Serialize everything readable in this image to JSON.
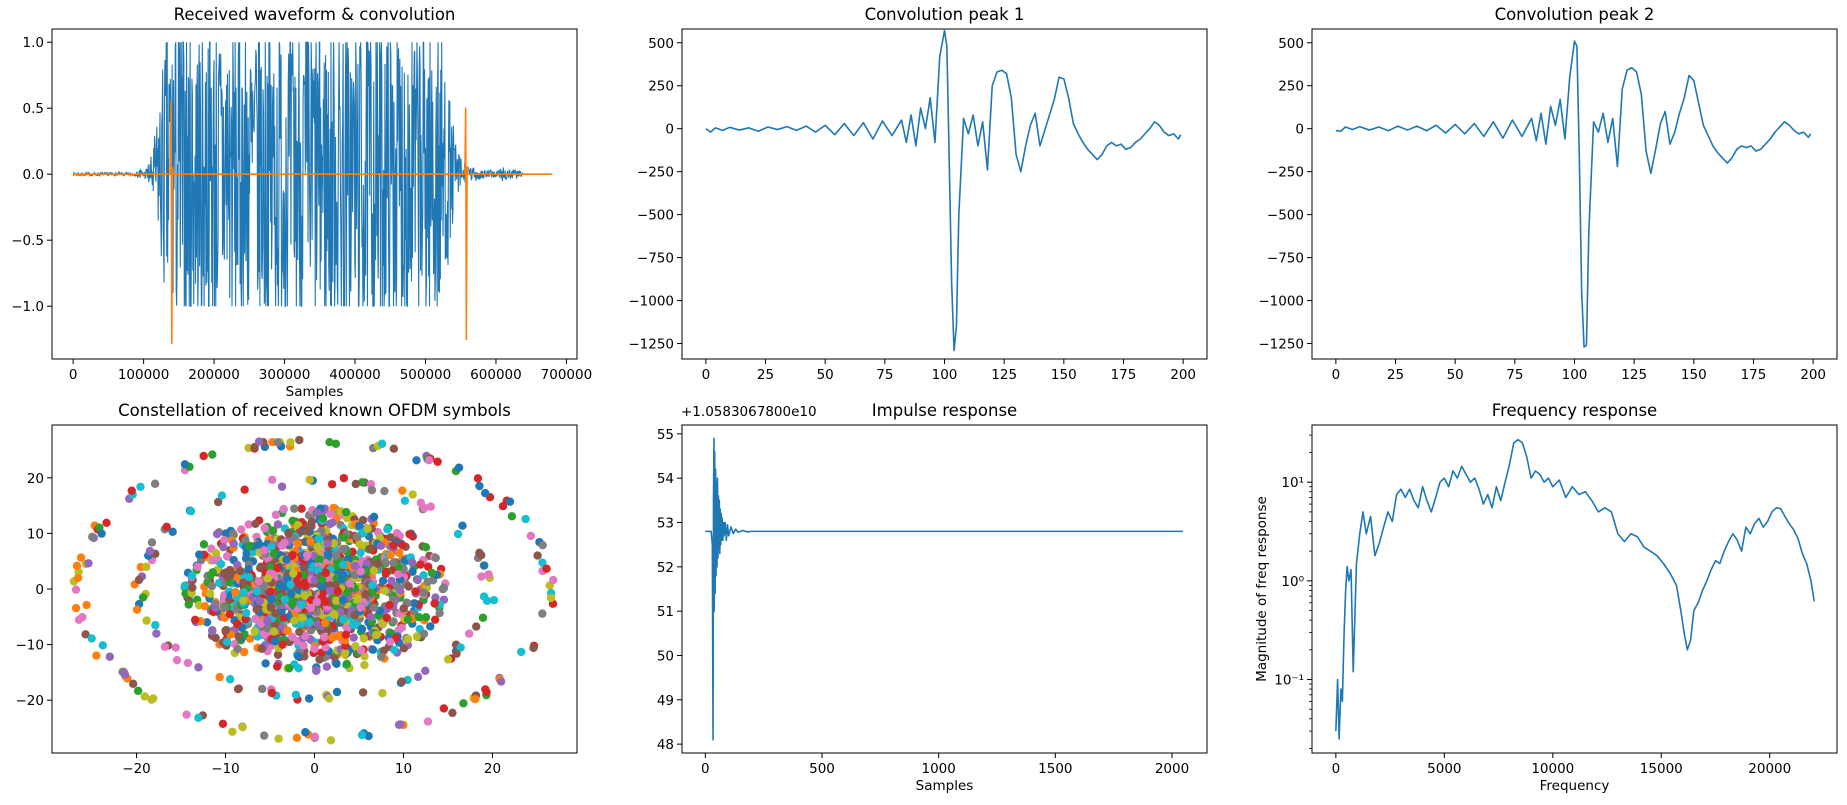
{
  "chart_data": [
    {
      "id": "p1",
      "type": "line",
      "title": "Received waveform & convolution",
      "xlabel": "Samples",
      "ylabel": "",
      "xlim": [
        -30000,
        715000
      ],
      "ylim": [
        -1.4,
        1.1
      ],
      "xticks": [
        0,
        100000,
        200000,
        300000,
        400000,
        500000,
        600000,
        700000
      ],
      "xtick_labels": [
        "0",
        "100000",
        "200000",
        "300000",
        "400000",
        "500000",
        "600000",
        "700000"
      ],
      "yticks": [
        -1.0,
        -0.5,
        0.0,
        0.5,
        1.0
      ],
      "ytick_labels": [
        "−1.0",
        "−0.5",
        "0.0",
        "0.5",
        "1.0"
      ],
      "series": [
        {
          "color": "#1f77b4",
          "envelope": [
            [
              0,
              0.01
            ],
            [
              90000,
              0.01
            ],
            [
              95000,
              0.05
            ],
            [
              100000,
              0.01
            ],
            [
              110000,
              0.1
            ],
            [
              118000,
              0.3
            ],
            [
              125000,
              0.6
            ],
            [
              135000,
              1.0
            ],
            [
              520000,
              1.0
            ],
            [
              528000,
              0.7
            ],
            [
              536000,
              0.4
            ],
            [
              545000,
              0.15
            ],
            [
              560000,
              0.05
            ],
            [
              600000,
              0.02
            ],
            [
              610000,
              0.05
            ],
            [
              640000,
              0.01
            ]
          ]
        },
        {
          "color": "#ff7f0e",
          "x": [
            0,
            138000,
            139000,
            140000,
            141000,
            142000,
            556000,
            557000,
            558000,
            559000,
            560000,
            680000
          ],
          "y": [
            0,
            0,
            0.55,
            -1.28,
            0.05,
            0,
            0,
            0.5,
            -1.25,
            0.05,
            0,
            0
          ]
        }
      ]
    },
    {
      "id": "p2",
      "type": "line",
      "title": "Convolution peak 1",
      "xlabel": "",
      "ylabel": "",
      "xlim": [
        -10,
        210
      ],
      "ylim": [
        -1340,
        580
      ],
      "xticks": [
        0,
        25,
        50,
        75,
        100,
        125,
        150,
        175,
        200
      ],
      "xtick_labels": [
        "0",
        "25",
        "50",
        "75",
        "100",
        "125",
        "150",
        "175",
        "200"
      ],
      "yticks": [
        -1250,
        -1000,
        -750,
        -500,
        -250,
        0,
        250,
        500
      ],
      "ytick_labels": [
        "−1250",
        "−1000",
        "−750",
        "−500",
        "−250",
        "0",
        "250",
        "500"
      ],
      "series": [
        {
          "color": "#1f77b4",
          "x": [
            0,
            2,
            4,
            7,
            10,
            14,
            18,
            22,
            26,
            30,
            34,
            38,
            42,
            46,
            50,
            54,
            58,
            62,
            66,
            70,
            74,
            78,
            82,
            84,
            86,
            88,
            90,
            92,
            94,
            96,
            98,
            100,
            101,
            102,
            103,
            104,
            105,
            106,
            108,
            110,
            112,
            114,
            116,
            118,
            120,
            122,
            124,
            126,
            128,
            130,
            132,
            134,
            136,
            138,
            140,
            142,
            144,
            146,
            148,
            150,
            152,
            154,
            156,
            158,
            160,
            162,
            164,
            166,
            168,
            170,
            172,
            174,
            176,
            178,
            180,
            182,
            184,
            186,
            188,
            190,
            192,
            194,
            196,
            198,
            199
          ],
          "y": [
            0,
            -20,
            5,
            -10,
            8,
            -8,
            5,
            -15,
            10,
            -5,
            12,
            -10,
            15,
            -20,
            20,
            -35,
            30,
            -40,
            35,
            -60,
            45,
            -40,
            50,
            -80,
            80,
            -100,
            120,
            0,
            180,
            -80,
            420,
            570,
            480,
            -200,
            -900,
            -1290,
            -1150,
            -500,
            60,
            -30,
            80,
            -100,
            40,
            -240,
            250,
            330,
            340,
            320,
            180,
            -150,
            -250,
            -100,
            20,
            90,
            -100,
            -10,
            80,
            170,
            300,
            290,
            180,
            30,
            -30,
            -80,
            -120,
            -150,
            -180,
            -150,
            -100,
            -80,
            -100,
            -90,
            -120,
            -110,
            -80,
            -60,
            -30,
            0,
            40,
            20,
            -20,
            -40,
            -30,
            -60,
            -35
          ]
        }
      ]
    },
    {
      "id": "p3",
      "type": "line",
      "title": "Convolution peak 2",
      "xlabel": "",
      "ylabel": "",
      "xlim": [
        -10,
        210
      ],
      "ylim": [
        -1340,
        580
      ],
      "xticks": [
        0,
        25,
        50,
        75,
        100,
        125,
        150,
        175,
        200
      ],
      "xtick_labels": [
        "0",
        "25",
        "50",
        "75",
        "100",
        "125",
        "150",
        "175",
        "200"
      ],
      "yticks": [
        -1250,
        -1000,
        -750,
        -500,
        -250,
        0,
        250,
        500
      ],
      "ytick_labels": [
        "−1250",
        "−1000",
        "−750",
        "−500",
        "−250",
        "0",
        "250",
        "500"
      ],
      "series": [
        {
          "color": "#1f77b4",
          "x": [
            0,
            2,
            4,
            7,
            10,
            14,
            18,
            22,
            26,
            30,
            34,
            38,
            42,
            46,
            50,
            54,
            58,
            62,
            66,
            70,
            74,
            78,
            82,
            84,
            86,
            88,
            90,
            92,
            94,
            96,
            98,
            100,
            101,
            102,
            103,
            104,
            105,
            106,
            108,
            110,
            112,
            114,
            116,
            118,
            120,
            122,
            124,
            126,
            128,
            130,
            132,
            134,
            136,
            138,
            140,
            142,
            144,
            146,
            148,
            150,
            152,
            154,
            156,
            158,
            160,
            162,
            164,
            166,
            168,
            170,
            172,
            174,
            176,
            178,
            180,
            182,
            184,
            186,
            188,
            190,
            192,
            194,
            196,
            198,
            199
          ],
          "y": [
            -10,
            -15,
            10,
            -5,
            12,
            -8,
            10,
            -12,
            15,
            -8,
            15,
            -12,
            20,
            -25,
            25,
            -30,
            30,
            -45,
            40,
            -55,
            50,
            -45,
            60,
            -70,
            90,
            -90,
            130,
            20,
            170,
            -60,
            300,
            510,
            480,
            -150,
            -950,
            -1270,
            -1260,
            -600,
            40,
            -20,
            90,
            -80,
            60,
            -220,
            230,
            340,
            355,
            330,
            200,
            -130,
            -260,
            -120,
            30,
            100,
            -90,
            -20,
            90,
            180,
            310,
            280,
            150,
            20,
            -40,
            -100,
            -140,
            -170,
            -200,
            -170,
            -120,
            -100,
            -110,
            -100,
            -130,
            -120,
            -90,
            -60,
            -20,
            10,
            40,
            20,
            -10,
            -30,
            -20,
            -50,
            -30
          ]
        }
      ]
    },
    {
      "id": "p4",
      "type": "scatter",
      "title": "Constellation of received known OFDM symbols",
      "xlabel": "",
      "ylabel": "",
      "xlim": [
        -29.5,
        29.5
      ],
      "ylim": [
        -29.5,
        29.5
      ],
      "xticks": [
        -20,
        -10,
        0,
        10,
        20
      ],
      "xtick_labels": [
        "−20",
        "−10",
        "0",
        "10",
        "20"
      ],
      "yticks": [
        -20,
        -10,
        0,
        10,
        20
      ],
      "ytick_labels": [
        "−20",
        "−10",
        "0",
        "10",
        "20"
      ],
      "rings": [
        {
          "radius": 26.5,
          "count": 130
        },
        {
          "radius": 19.5,
          "count": 95
        },
        {
          "radius": 14.0,
          "count": 160
        },
        {
          "radius": 12.0,
          "count": 200
        },
        {
          "radius": 10.0,
          "count": 230
        },
        {
          "radius": 7.5,
          "count": 320
        },
        {
          "radius": 5.0,
          "count": 420
        },
        {
          "radius": 2.5,
          "count": 500
        }
      ],
      "colors": [
        "#1f77b4",
        "#ff7f0e",
        "#2ca02c",
        "#d62728",
        "#9467bd",
        "#8c564b",
        "#e377c2",
        "#7f7f7f",
        "#bcbd22",
        "#17becf"
      ]
    },
    {
      "id": "p5",
      "type": "line",
      "title": "Impulse response",
      "xlabel": "Samples",
      "ylabel": "",
      "offset_label": "+1.0583067800e10",
      "xlim": [
        -100,
        2150
      ],
      "ylim": [
        47.8,
        55.2
      ],
      "xticks": [
        0,
        500,
        1000,
        1500,
        2000
      ],
      "xtick_labels": [
        "0",
        "500",
        "1000",
        "1500",
        "2000"
      ],
      "yticks": [
        48,
        49,
        50,
        51,
        52,
        53,
        54,
        55
      ],
      "ytick_labels": [
        "48",
        "49",
        "50",
        "51",
        "52",
        "53",
        "54",
        "55"
      ],
      "series": [
        {
          "color": "#1f77b4",
          "x": [
            0,
            10,
            20,
            25,
            30,
            33,
            35,
            37,
            38,
            40,
            42,
            44,
            46,
            48,
            50,
            52,
            54,
            56,
            58,
            60,
            62,
            64,
            66,
            68,
            70,
            72,
            75,
            78,
            80,
            85,
            90,
            95,
            100,
            110,
            120,
            130,
            140,
            160,
            180,
            200,
            250,
            300,
            400,
            600,
            800,
            1000,
            1200,
            1400,
            1600,
            1800,
            2047
          ],
          "y": [
            52.8,
            52.8,
            52.8,
            52.8,
            52.5,
            48.1,
            53.5,
            54.9,
            51.0,
            54.6,
            51.4,
            54.2,
            51.8,
            53.9,
            52.0,
            54.0,
            52.2,
            53.6,
            52.4,
            53.5,
            52.3,
            53.3,
            52.5,
            53.2,
            52.6,
            53.1,
            52.6,
            53.0,
            52.7,
            53.0,
            52.6,
            52.95,
            52.7,
            52.9,
            52.75,
            52.85,
            52.78,
            52.82,
            52.79,
            52.8,
            52.8,
            52.8,
            52.8,
            52.8,
            52.8,
            52.8,
            52.8,
            52.8,
            52.8,
            52.8,
            52.8
          ]
        }
      ]
    },
    {
      "id": "p6",
      "type": "line",
      "title": "Frequency response",
      "xlabel": "Frequency",
      "ylabel": "Magnitude of freq response",
      "yscale": "log",
      "xlim": [
        -1100,
        23100
      ],
      "ylim": [
        0.018,
        38
      ],
      "xticks": [
        0,
        5000,
        10000,
        15000,
        20000
      ],
      "xtick_labels": [
        "0",
        "5000",
        "10000",
        "15000",
        "20000"
      ],
      "yticks": [
        0.1,
        1,
        10
      ],
      "ytick_labels": [
        "10⁻¹",
        "10⁰",
        "10¹"
      ],
      "series": [
        {
          "color": "#1f77b4",
          "x": [
            0,
            80,
            150,
            230,
            300,
            380,
            450,
            520,
            600,
            700,
            800,
            950,
            1100,
            1250,
            1400,
            1600,
            1800,
            2000,
            2200,
            2400,
            2600,
            2800,
            3000,
            3200,
            3400,
            3600,
            3800,
            4000,
            4200,
            4400,
            4600,
            4800,
            5000,
            5200,
            5400,
            5600,
            5800,
            6000,
            6200,
            6400,
            6600,
            6800,
            7000,
            7200,
            7400,
            7600,
            7800,
            8000,
            8200,
            8400,
            8600,
            8800,
            9000,
            9200,
            9400,
            9600,
            9800,
            10000,
            10300,
            10600,
            10900,
            11200,
            11500,
            11800,
            12100,
            12400,
            12700,
            13000,
            13300,
            13600,
            13900,
            14200,
            14500,
            14800,
            15100,
            15400,
            15700,
            15900,
            16050,
            16200,
            16350,
            16500,
            16700,
            16900,
            17100,
            17300,
            17500,
            17700,
            17900,
            18100,
            18300,
            18500,
            18700,
            18900,
            19100,
            19300,
            19500,
            19700,
            19900,
            20100,
            20300,
            20500,
            20700,
            20900,
            21100,
            21300,
            21500,
            21700,
            21900,
            22050
          ],
          "y": [
            0.03,
            0.1,
            0.025,
            0.08,
            0.06,
            0.3,
            0.8,
            1.4,
            1.0,
            1.3,
            0.12,
            1.5,
            3.0,
            5.0,
            3.0,
            4.5,
            1.8,
            2.4,
            3.5,
            5.0,
            4.0,
            7.5,
            8.5,
            7.0,
            8.5,
            6.5,
            5.5,
            9.0,
            6.5,
            5.0,
            7.0,
            10.0,
            11.0,
            9.0,
            13.0,
            11.0,
            14.5,
            12.0,
            10.0,
            11.0,
            8.5,
            6.0,
            7.5,
            5.5,
            9.0,
            6.5,
            10.0,
            15.0,
            25.0,
            27.0,
            25.0,
            18.0,
            11.0,
            13.0,
            12.0,
            10.0,
            11.0,
            9.0,
            10.5,
            7.0,
            9.0,
            7.5,
            8.0,
            6.5,
            5.0,
            5.5,
            5.0,
            3.0,
            2.5,
            3.0,
            2.8,
            2.2,
            2.0,
            1.8,
            1.5,
            1.2,
            0.9,
            0.5,
            0.3,
            0.2,
            0.25,
            0.5,
            0.6,
            0.8,
            1.0,
            1.3,
            1.6,
            1.5,
            2.0,
            2.5,
            3.0,
            2.6,
            2.0,
            3.5,
            3.0,
            3.8,
            4.3,
            3.5,
            4.0,
            5.0,
            5.5,
            5.4,
            4.5,
            3.8,
            3.3,
            2.7,
            1.9,
            1.5,
            1.0,
            0.62
          ]
        }
      ]
    }
  ]
}
